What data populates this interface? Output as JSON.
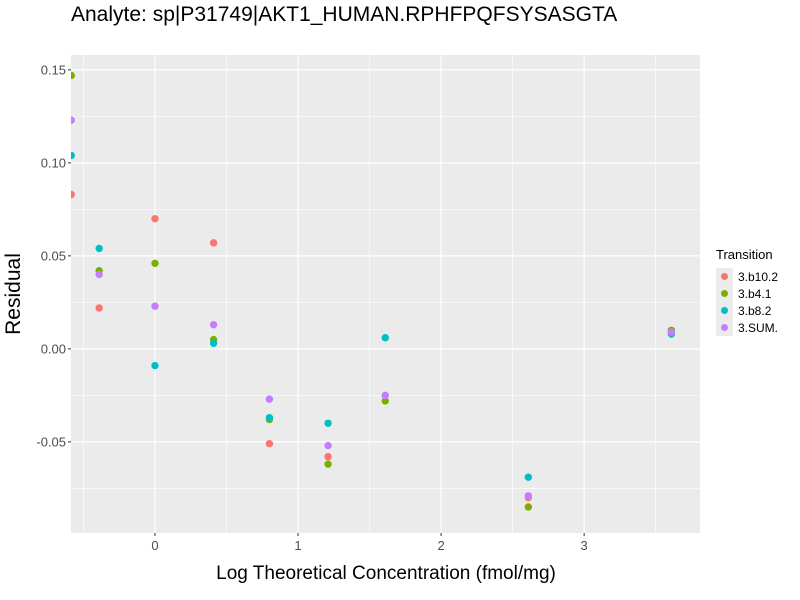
{
  "chart_data": {
    "type": "scatter",
    "title": "Analyte: sp|P31749|AKT1_HUMAN.RPHFPQFSYSASGTA",
    "xlabel": "Log Theoretical Concentration (fmol/mg)",
    "ylabel": "Residual",
    "xlim": [
      -0.587,
      3.81
    ],
    "ylim": [
      -0.099,
      0.158
    ],
    "x_ticks": [
      0,
      1,
      2,
      3
    ],
    "x_tick_labels": [
      "0",
      "1",
      "2",
      "3"
    ],
    "y_ticks": [
      -0.05,
      0.0,
      0.05,
      0.1,
      0.15
    ],
    "y_tick_labels": [
      "-0.05",
      "0.00",
      "0.05",
      "0.10",
      "0.15"
    ],
    "grid": true,
    "legend_position": "right",
    "legend_title": "Transition",
    "series": [
      {
        "name": "3.b10.2",
        "color": "#F8766D",
        "x": [
          -0.585,
          -0.39,
          0.0,
          0.41,
          0.8,
          1.21,
          2.61,
          3.61
        ],
        "y": [
          0.083,
          0.022,
          0.07,
          0.057,
          -0.051,
          -0.058,
          -0.08,
          0.009
        ]
      },
      {
        "name": "3.b4.1",
        "color": "#7CAE00",
        "x": [
          -0.585,
          -0.39,
          0.0,
          0.41,
          0.8,
          1.21,
          1.61,
          2.61,
          3.61
        ],
        "y": [
          0.147,
          0.042,
          0.046,
          0.005,
          -0.038,
          -0.062,
          -0.028,
          -0.085,
          0.01
        ]
      },
      {
        "name": "3.b8.2",
        "color": "#00BFC4",
        "x": [
          -0.585,
          -0.39,
          0.0,
          0.41,
          0.8,
          1.21,
          1.61,
          2.61,
          3.61
        ],
        "y": [
          0.104,
          0.054,
          -0.009,
          0.003,
          -0.037,
          -0.04,
          0.006,
          -0.069,
          0.008
        ]
      },
      {
        "name": "3.SUM.",
        "color": "#C77CFF",
        "x": [
          -0.585,
          -0.39,
          0.0,
          0.41,
          0.8,
          1.21,
          1.61,
          2.61,
          3.61
        ],
        "y": [
          0.123,
          0.04,
          0.023,
          0.013,
          -0.027,
          -0.052,
          -0.025,
          -0.079,
          0.009
        ]
      }
    ]
  },
  "colors": {
    "panel_background": "#EBEBEB",
    "grid_major": "#FFFFFF",
    "tick_text": "#4D4D4D"
  }
}
